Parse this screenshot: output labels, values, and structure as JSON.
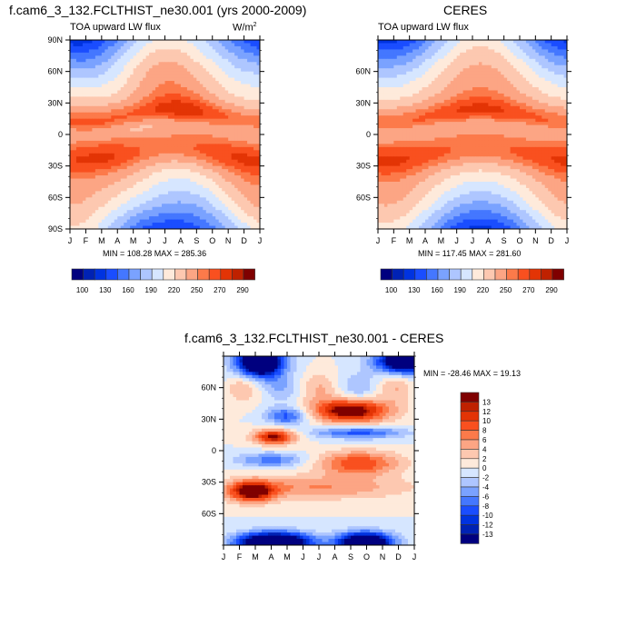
{
  "chart_data": [
    {
      "type": "heatmap",
      "title": "f.cam6_3_132.FCLTHIST_ne30.001 (yrs 2000-2009)",
      "subtitle_left": "TOA upward LW flux",
      "units": "W/m",
      "units_sup": "2",
      "xlabel": "",
      "ylabel": "",
      "x_ticks": [
        "J",
        "F",
        "M",
        "A",
        "M",
        "J",
        "J",
        "A",
        "S",
        "O",
        "N",
        "D",
        "J"
      ],
      "y_ticks": [
        "90N",
        "60N",
        "30N",
        "0",
        "30S",
        "60S",
        "90S"
      ],
      "y_values": [
        90,
        60,
        30,
        0,
        -30,
        -60,
        -90
      ],
      "ylim": [
        -90,
        90
      ],
      "min": 108.28,
      "max": 285.36,
      "minmax_label": "MIN = 108.28 MAX = 285.36",
      "colorbar": {
        "orientation": "horizontal",
        "labels": [
          "100",
          "130",
          "160",
          "190",
          "220",
          "250",
          "270",
          "290"
        ],
        "levels": [
          100,
          115,
          130,
          145,
          160,
          175,
          190,
          205,
          220,
          235,
          250,
          260,
          270,
          280,
          290
        ]
      }
    },
    {
      "type": "heatmap",
      "title": "CERES",
      "subtitle_left": "TOA upward LW flux",
      "x_ticks": [
        "J",
        "F",
        "M",
        "A",
        "M",
        "J",
        "J",
        "A",
        "S",
        "O",
        "N",
        "D",
        "J"
      ],
      "y_ticks": [
        "60N",
        "30N",
        "0",
        "30S",
        "60S"
      ],
      "y_values": [
        60,
        30,
        0,
        -30,
        -60
      ],
      "ylim": [
        -90,
        90
      ],
      "min": 117.45,
      "max": 281.6,
      "minmax_label": "MIN = 117.45 MAX = 281.60",
      "colorbar": {
        "orientation": "horizontal",
        "labels": [
          "100",
          "130",
          "160",
          "190",
          "220",
          "250",
          "270",
          "290"
        ],
        "levels": [
          100,
          115,
          130,
          145,
          160,
          175,
          190,
          205,
          220,
          235,
          250,
          260,
          270,
          280,
          290
        ]
      }
    },
    {
      "type": "heatmap",
      "title": "f.cam6_3_132.FCLTHIST_ne30.001 - CERES",
      "x_ticks": [
        "J",
        "F",
        "M",
        "A",
        "M",
        "J",
        "J",
        "A",
        "S",
        "O",
        "N",
        "D",
        "J"
      ],
      "y_ticks": [
        "60N",
        "30N",
        "0",
        "30S",
        "60S"
      ],
      "y_values": [
        60,
        30,
        0,
        -30,
        -60
      ],
      "ylim": [
        -90,
        90
      ],
      "min": -28.46,
      "max": 19.13,
      "minmax_label": "MIN = -28.46 MAX =  19.13",
      "colorbar": {
        "orientation": "vertical",
        "labels": [
          "13",
          "12",
          "10",
          "8",
          "6",
          "4",
          "2",
          "0",
          "-2",
          "-4",
          "-6",
          "-8",
          "-10",
          "-12",
          "-13"
        ],
        "levels": [
          13,
          12,
          10,
          8,
          6,
          4,
          2,
          0,
          -2,
          -4,
          -6,
          -8,
          -10,
          -12,
          -13
        ]
      }
    }
  ],
  "palette": [
    "#00007f",
    "#0022b4",
    "#0033e0",
    "#1a4dff",
    "#4477ff",
    "#7aa2ff",
    "#aec6ff",
    "#d6e6ff",
    "#feeadb",
    "#fdc8b0",
    "#fca584",
    "#fc7a4a",
    "#f9501f",
    "#e33405",
    "#bf2100",
    "#7f0000"
  ]
}
